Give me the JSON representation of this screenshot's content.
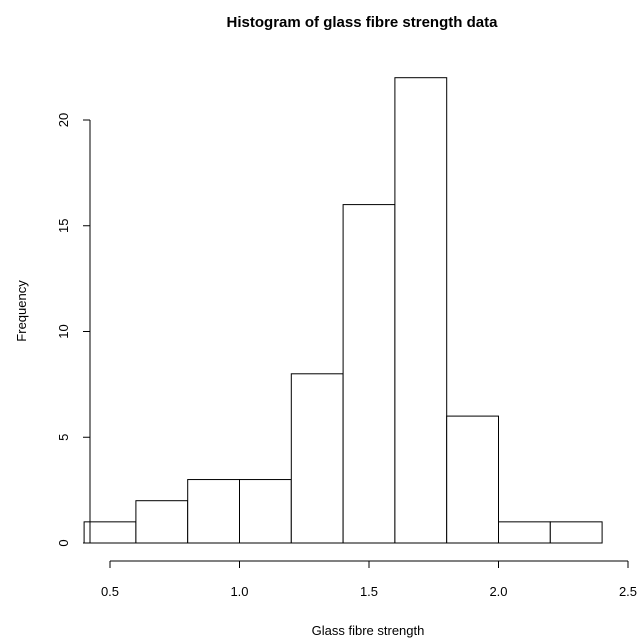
{
  "chart_data": {
    "type": "bar",
    "title": "Histogram of glass fibre strength data",
    "xlabel": "Glass fibre strength",
    "ylabel": "Frequency",
    "bins": [
      {
        "start": 0.4,
        "end": 0.6,
        "count": 1
      },
      {
        "start": 0.6,
        "end": 0.8,
        "count": 2
      },
      {
        "start": 0.8,
        "end": 1.0,
        "count": 3
      },
      {
        "start": 1.0,
        "end": 1.2,
        "count": 3
      },
      {
        "start": 1.2,
        "end": 1.4,
        "count": 8
      },
      {
        "start": 1.4,
        "end": 1.6,
        "count": 16
      },
      {
        "start": 1.6,
        "end": 1.8,
        "count": 22
      },
      {
        "start": 1.8,
        "end": 2.0,
        "count": 6
      },
      {
        "start": 2.0,
        "end": 2.2,
        "count": 1
      },
      {
        "start": 2.2,
        "end": 2.4,
        "count": 1
      }
    ],
    "xlim": [
      0.4,
      2.5
    ],
    "ylim": [
      0,
      22
    ],
    "x_ticks": [
      "0.5",
      "1.0",
      "1.5",
      "2.0",
      "2.5"
    ],
    "y_ticks": [
      "0",
      "5",
      "10",
      "15",
      "20"
    ],
    "grid": false,
    "colors": {
      "bar_fill": "#ffffff",
      "bar_stroke": "#000000"
    }
  }
}
